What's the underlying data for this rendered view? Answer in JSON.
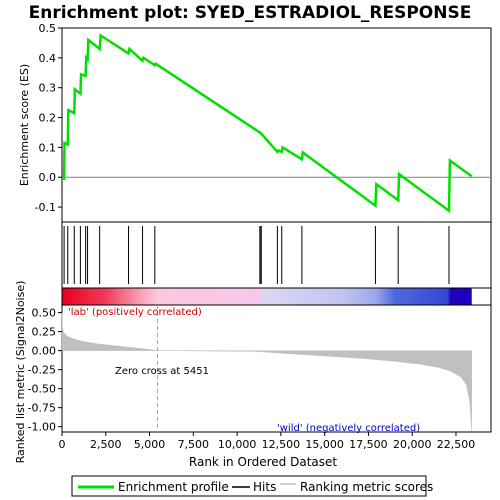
{
  "chart_data": {
    "type": "line",
    "title": "Enrichment plot: SYED_ESTRADIOL_RESPONSE",
    "top_panel": {
      "ylabel": "Enrichment score (ES)",
      "ylim": [
        -0.15,
        0.5
      ],
      "yticks": [
        "0.5",
        "0.4",
        "0.3",
        "0.2",
        "0.1",
        "0.0",
        "-0.1"
      ],
      "ytick_values": [
        0.5,
        0.4,
        0.3,
        0.2,
        0.1,
        0.0,
        -0.1
      ],
      "series": [
        {
          "name": "Enrichment profile",
          "color": "#00e000",
          "x": [
            0,
            120,
            140,
            330,
            360,
            700,
            730,
            1050,
            1090,
            1350,
            1380,
            1460,
            1500,
            2150,
            2210,
            3800,
            3850,
            4600,
            4650,
            5300,
            5350,
            11300,
            11320,
            11380,
            11400,
            12300,
            12350,
            12550,
            12600,
            13700,
            13750,
            17900,
            17950,
            19200,
            19250,
            22100,
            22150,
            23400
          ],
          "y": [
            -0.005,
            -0.005,
            0.115,
            0.11,
            0.225,
            0.215,
            0.295,
            0.28,
            0.345,
            0.34,
            0.4,
            0.395,
            0.46,
            0.43,
            0.475,
            0.415,
            0.43,
            0.39,
            0.4,
            0.375,
            0.38,
            0.15,
            0.148,
            0.146,
            0.145,
            0.085,
            0.09,
            0.085,
            0.1,
            0.06,
            0.083,
            -0.095,
            -0.023,
            -0.077,
            0.01,
            -0.112,
            0.056,
            0.003
          ]
        }
      ]
    },
    "hits": [
      120,
      330,
      700,
      1050,
      1350,
      1460,
      2150,
      3800,
      4600,
      5300,
      11300,
      11320,
      11380,
      12300,
      12550,
      13700,
      17900,
      19200,
      22100
    ],
    "heatmap_bar": {
      "stops": [
        {
          "rank": 0,
          "color": "#e8001e"
        },
        {
          "rank": 2500,
          "color": "#f03c5a"
        },
        {
          "rank": 4500,
          "color": "#f8a0b8"
        },
        {
          "rank": 5451,
          "color": "#fcc8e0"
        },
        {
          "rank": 11300,
          "color": "#f8c8ec"
        },
        {
          "rank": 11400,
          "color": "#dcd8f4"
        },
        {
          "rank": 16000,
          "color": "#c0c4f0"
        },
        {
          "rank": 17900,
          "color": "#9ca8ec"
        },
        {
          "rank": 19000,
          "color": "#5068dc"
        },
        {
          "rank": 22000,
          "color": "#3448d4"
        },
        {
          "rank": 22200,
          "color": "#2000c0"
        },
        {
          "rank": 23400,
          "color": "#2000c0"
        }
      ]
    },
    "bottom_panel": {
      "ylabel": "Ranked list metric (Signal2Noise)",
      "ylim": [
        -1.07,
        0.6
      ],
      "yticks": [
        "0.50",
        "0.25",
        "0.00",
        "-0.25",
        "-0.50",
        "-0.75",
        "-1.00"
      ],
      "ytick_values": [
        0.5,
        0.25,
        0.0,
        -0.25,
        -0.5,
        -0.75,
        -1.0
      ],
      "metric": {
        "color": "#c0c0c0",
        "x": [
          0,
          30,
          100,
          300,
          700,
          1200,
          2000,
          3000,
          4000,
          5000,
          5451,
          11000,
          13000,
          15000,
          17000,
          19000,
          20500,
          21500,
          22200,
          22800,
          23100,
          23300,
          23400
        ],
        "y": [
          0.5,
          0.3,
          0.24,
          0.19,
          0.15,
          0.12,
          0.09,
          0.065,
          0.04,
          0.015,
          0.0,
          -0.01,
          -0.04,
          -0.07,
          -0.1,
          -0.14,
          -0.18,
          -0.22,
          -0.27,
          -0.35,
          -0.45,
          -0.7,
          -1.05
        ]
      },
      "zero_cross_rank": 5451,
      "zero_cross_label": "Zero cross at 5451",
      "positive_label": "'lab' (positively correlated)",
      "negative_label": "'wild' (negatively correlated)"
    },
    "xlabel": "Rank in Ordered Dataset",
    "xlim": [
      0,
      24500
    ],
    "xticks": [
      "0",
      "2,500",
      "5,000",
      "7,500",
      "10,000",
      "12,500",
      "15,000",
      "17,500",
      "20,000",
      "22,500"
    ],
    "xtick_values": [
      0,
      2500,
      5000,
      7500,
      10000,
      12500,
      15000,
      17500,
      20000,
      22500
    ],
    "legend": {
      "placement": "bottom",
      "items": [
        {
          "label": "Enrichment profile",
          "color": "#00e000"
        },
        {
          "label": "Hits",
          "color": "#000000"
        },
        {
          "label": "Ranking metric scores",
          "color": "#c0c0c0"
        }
      ]
    }
  }
}
